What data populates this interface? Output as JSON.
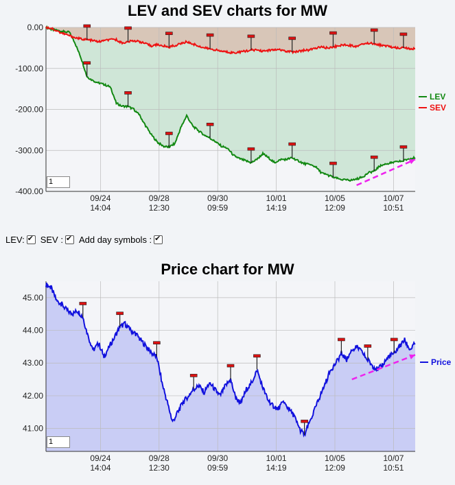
{
  "controls": {
    "lev_label": "LEV:",
    "sev_label": "SEV :",
    "day_symbols_label": "Add day symbols :",
    "lev_checked": true,
    "sev_checked": true,
    "day_symbols_checked": true
  },
  "chart_data": [
    {
      "type": "line",
      "title": "LEV and SEV charts for MW",
      "zoom_value": "1",
      "ylim": [
        -400,
        0
      ],
      "yticks": [
        0,
        -100,
        -200,
        -300,
        -400
      ],
      "ytick_labels": [
        "0.00",
        "-100.00",
        "-200.00",
        "-300.00",
        "-400.00"
      ],
      "xtick_labels": [
        [
          "09/24",
          "14:04"
        ],
        [
          "09/28",
          "12:30"
        ],
        [
          "09/30",
          "09:59"
        ],
        [
          "10/01",
          "14:19"
        ],
        [
          "10/05",
          "12:09"
        ],
        [
          "10/07",
          "10:51"
        ]
      ],
      "grid": true,
      "legend_position": "right",
      "series": [
        {
          "name": "LEV",
          "color": "#118811",
          "fill": "#cfe6d7",
          "values": [
            0,
            -5,
            -8,
            -10,
            -12,
            -40,
            -75,
            -120,
            -130,
            -135,
            -140,
            -145,
            -185,
            -192,
            -193,
            -200,
            -215,
            -240,
            -262,
            -280,
            -290,
            -292,
            -283,
            -245,
            -215,
            -240,
            -252,
            -262,
            -270,
            -280,
            -290,
            -295,
            -312,
            -320,
            -325,
            -330,
            -322,
            -308,
            -318,
            -330,
            -322,
            -322,
            -318,
            -325,
            -332,
            -335,
            -340,
            -355,
            -360,
            -365,
            -370,
            -372,
            -373,
            -370,
            -365,
            -355,
            -350,
            -338,
            -333,
            -330,
            -328,
            -325,
            -320,
            -318
          ]
        },
        {
          "name": "SEV",
          "color": "#ee1111",
          "fill": "#d8c6b8",
          "values": [
            0,
            -2,
            -10,
            -15,
            -20,
            -25,
            -28,
            -30,
            -32,
            -35,
            -32,
            -30,
            -30,
            -38,
            -35,
            -32,
            -35,
            -40,
            -45,
            -42,
            -45,
            -48,
            -44,
            -40,
            -35,
            -40,
            -45,
            -50,
            -52,
            -55,
            -58,
            -60,
            -62,
            -60,
            -58,
            -55,
            -55,
            -58,
            -56,
            -55,
            -55,
            -58,
            -60,
            -58,
            -56,
            -55,
            -50,
            -48,
            -50,
            -47,
            -45,
            -42,
            -44,
            -46,
            -40,
            -38,
            -40,
            -43,
            -45,
            -48,
            -50,
            -50,
            -52,
            -52
          ]
        }
      ],
      "day_markers": [
        {
          "series": "SEV",
          "index": 7,
          "dir": "up"
        },
        {
          "series": "LEV",
          "index": 7,
          "dir": "up"
        },
        {
          "series": "SEV",
          "index": 14,
          "dir": "up"
        },
        {
          "series": "LEV",
          "index": 14,
          "dir": "up"
        },
        {
          "series": "SEV",
          "index": 21,
          "dir": "up"
        },
        {
          "series": "LEV",
          "index": 21,
          "dir": "up"
        },
        {
          "series": "SEV",
          "index": 28,
          "dir": "up"
        },
        {
          "series": "LEV",
          "index": 28,
          "dir": "up"
        },
        {
          "series": "SEV",
          "index": 35,
          "dir": "up"
        },
        {
          "series": "LEV",
          "index": 35,
          "dir": "up"
        },
        {
          "series": "SEV",
          "index": 42,
          "dir": "up"
        },
        {
          "series": "LEV",
          "index": 42,
          "dir": "up"
        },
        {
          "series": "SEV",
          "index": 49,
          "dir": "up"
        },
        {
          "series": "LEV",
          "index": 49,
          "dir": "up"
        },
        {
          "series": "SEV",
          "index": 56,
          "dir": "up"
        },
        {
          "series": "LEV",
          "index": 56,
          "dir": "up"
        },
        {
          "series": "SEV",
          "index": 61,
          "dir": "up"
        },
        {
          "series": "LEV",
          "index": 61,
          "dir": "up"
        }
      ],
      "trend_arrow": {
        "from": [
          53,
          -385
        ],
        "to": [
          63,
          -322
        ],
        "color": "#ee22ee"
      }
    },
    {
      "type": "area",
      "title": "Price chart for MW",
      "zoom_value": "1",
      "ylim": [
        40.3,
        45.5
      ],
      "yticks": [
        41,
        42,
        43,
        44,
        45
      ],
      "ytick_labels": [
        "41.00",
        "42.00",
        "43.00",
        "44.00",
        "45.00"
      ],
      "xtick_labels": [
        [
          "09/24",
          "14:04"
        ],
        [
          "09/28",
          "12:30"
        ],
        [
          "09/30",
          "09:59"
        ],
        [
          "10/01",
          "14:19"
        ],
        [
          "10/05",
          "12:09"
        ],
        [
          "10/07",
          "10:51"
        ]
      ],
      "grid": true,
      "legend_position": "right",
      "series": [
        {
          "name": "Price",
          "color": "#1111dd",
          "fill": "#c9cdf5",
          "values": [
            45.4,
            45.3,
            44.9,
            44.8,
            44.6,
            44.5,
            44.6,
            44.4,
            43.8,
            43.4,
            43.6,
            43.2,
            43.5,
            43.8,
            44.1,
            44.2,
            44.0,
            43.9,
            43.7,
            43.5,
            43.3,
            43.2,
            42.4,
            41.8,
            41.2,
            41.5,
            41.8,
            42.0,
            42.2,
            42.3,
            42.1,
            42.4,
            42.2,
            42.0,
            42.3,
            42.5,
            41.9,
            41.8,
            42.2,
            42.4,
            42.8,
            42.3,
            41.9,
            41.7,
            41.6,
            41.8,
            41.6,
            41.4,
            41.0,
            40.8,
            41.2,
            41.6,
            42.0,
            42.4,
            42.8,
            43.0,
            43.3,
            43.1,
            43.4,
            43.5,
            43.3,
            43.1,
            42.9,
            42.8,
            43.0,
            43.2,
            43.3,
            43.5,
            43.7,
            43.4,
            43.6
          ]
        }
      ],
      "day_markers": [
        {
          "series": "Price",
          "index": 7,
          "dir": "up"
        },
        {
          "series": "Price",
          "index": 14,
          "dir": "up"
        },
        {
          "series": "Price",
          "index": 21,
          "dir": "up"
        },
        {
          "series": "Price",
          "index": 28,
          "dir": "up"
        },
        {
          "series": "Price",
          "index": 35,
          "dir": "up"
        },
        {
          "series": "Price",
          "index": 40,
          "dir": "up"
        },
        {
          "series": "Price",
          "index": 49,
          "dir": "up"
        },
        {
          "series": "Price",
          "index": 56,
          "dir": "up"
        },
        {
          "series": "Price",
          "index": 61,
          "dir": "up"
        },
        {
          "series": "Price",
          "index": 66,
          "dir": "up"
        }
      ],
      "trend_arrow": {
        "from": [
          58,
          42.5
        ],
        "to": [
          70,
          43.25
        ],
        "color": "#ee22ee"
      }
    }
  ]
}
